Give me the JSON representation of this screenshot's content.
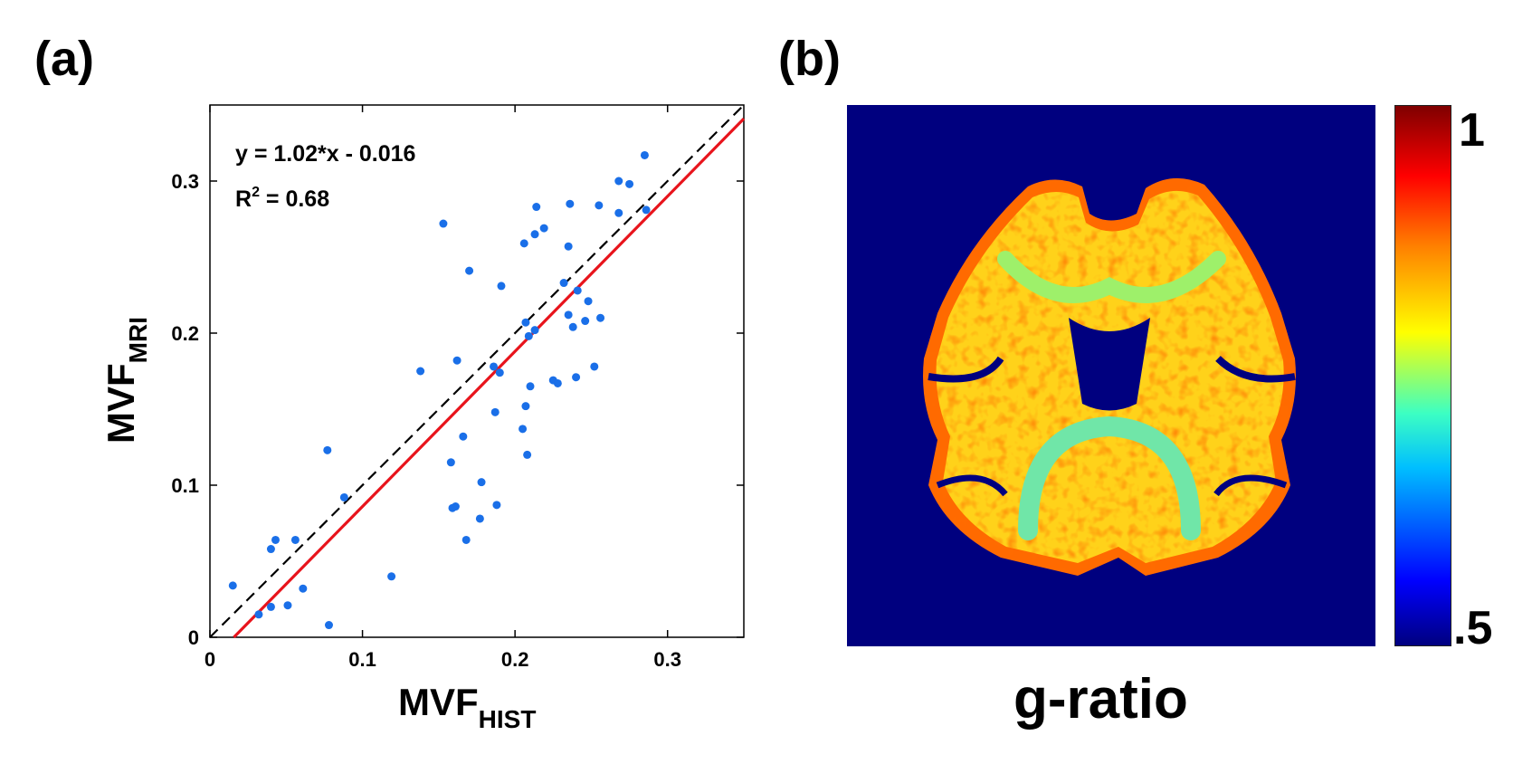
{
  "panel_labels": {
    "a": "(a)",
    "b": "(b)"
  },
  "chart_data": [
    {
      "type": "scatter",
      "title": "",
      "xlabel": "MVF",
      "xlabel_subscript": "HIST",
      "ylabel": "MVF",
      "ylabel_subscript": "MRI",
      "xlim": [
        0,
        0.35
      ],
      "ylim": [
        0,
        0.35
      ],
      "xticks": [
        0,
        0.1,
        0.2,
        0.3
      ],
      "yticks": [
        0,
        0.1,
        0.2,
        0.3
      ],
      "xtick_labels": [
        "0",
        "0.1",
        "0.2",
        "0.3"
      ],
      "ytick_labels": [
        "0",
        "0.1",
        "0.2",
        "0.3"
      ],
      "grid": false,
      "annotations": {
        "equation": "y = 1.02*x - 0.016",
        "r2_prefix": "R",
        "r2_exponent": "2",
        "r2_suffix": " = 0.68"
      },
      "lines": [
        {
          "name": "fit",
          "slope": 1.02,
          "intercept": -0.016,
          "color": "#e8141c",
          "style": "solid"
        },
        {
          "name": "identity",
          "slope": 1.0,
          "intercept": 0.0,
          "color": "#000000",
          "style": "dashed"
        }
      ],
      "point_color": "#1a6fe8",
      "points": [
        [
          0.015,
          0.034
        ],
        [
          0.032,
          0.015
        ],
        [
          0.04,
          0.02
        ],
        [
          0.04,
          0.058
        ],
        [
          0.043,
          0.064
        ],
        [
          0.051,
          0.021
        ],
        [
          0.056,
          0.064
        ],
        [
          0.061,
          0.032
        ],
        [
          0.077,
          0.123
        ],
        [
          0.078,
          0.008
        ],
        [
          0.088,
          0.092
        ],
        [
          0.119,
          0.04
        ],
        [
          0.138,
          0.175
        ],
        [
          0.153,
          0.272
        ],
        [
          0.158,
          0.115
        ],
        [
          0.159,
          0.085
        ],
        [
          0.161,
          0.086
        ],
        [
          0.162,
          0.182
        ],
        [
          0.166,
          0.132
        ],
        [
          0.168,
          0.064
        ],
        [
          0.17,
          0.241
        ],
        [
          0.177,
          0.078
        ],
        [
          0.178,
          0.102
        ],
        [
          0.186,
          0.178
        ],
        [
          0.187,
          0.148
        ],
        [
          0.188,
          0.087
        ],
        [
          0.19,
          0.174
        ],
        [
          0.191,
          0.231
        ],
        [
          0.205,
          0.137
        ],
        [
          0.206,
          0.259
        ],
        [
          0.207,
          0.152
        ],
        [
          0.207,
          0.207
        ],
        [
          0.208,
          0.12
        ],
        [
          0.209,
          0.198
        ],
        [
          0.21,
          0.165
        ],
        [
          0.213,
          0.202
        ],
        [
          0.213,
          0.265
        ],
        [
          0.214,
          0.283
        ],
        [
          0.219,
          0.269
        ],
        [
          0.225,
          0.169
        ],
        [
          0.228,
          0.167
        ],
        [
          0.232,
          0.233
        ],
        [
          0.235,
          0.212
        ],
        [
          0.235,
          0.257
        ],
        [
          0.236,
          0.285
        ],
        [
          0.238,
          0.204
        ],
        [
          0.24,
          0.171
        ],
        [
          0.241,
          0.228
        ],
        [
          0.246,
          0.208
        ],
        [
          0.248,
          0.221
        ],
        [
          0.252,
          0.178
        ],
        [
          0.255,
          0.284
        ],
        [
          0.256,
          0.21
        ],
        [
          0.268,
          0.279
        ],
        [
          0.268,
          0.3
        ],
        [
          0.275,
          0.298
        ],
        [
          0.285,
          0.317
        ],
        [
          0.286,
          0.281
        ]
      ]
    },
    {
      "type": "heatmap",
      "title": "g-ratio",
      "colorbar_max_label": "1",
      "colorbar_min_label": ".5",
      "colorbar_range": [
        0.5,
        1
      ],
      "background_color": "#00007f"
    }
  ]
}
